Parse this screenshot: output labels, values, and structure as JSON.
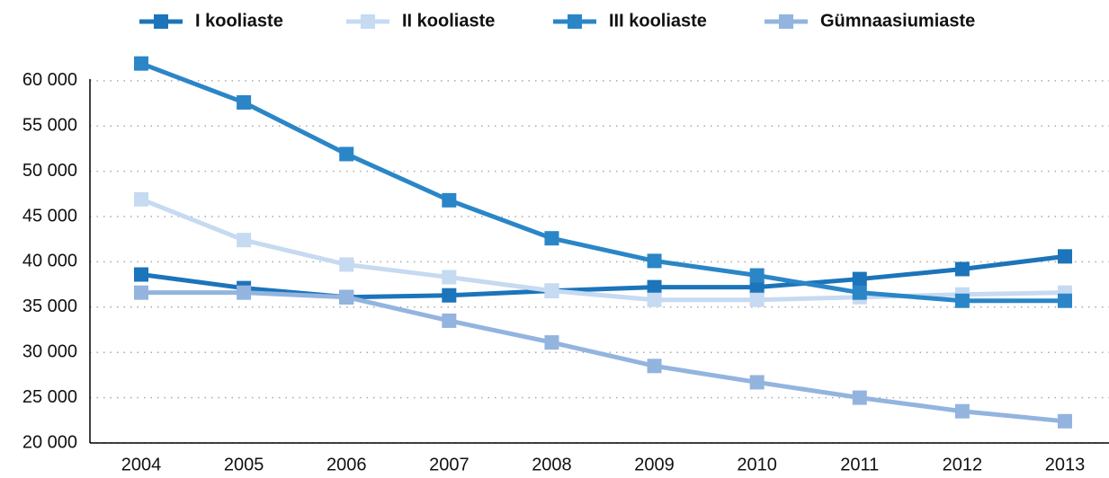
{
  "chart_data": {
    "type": "line",
    "categories": [
      "2004",
      "2005",
      "2006",
      "2007",
      "2008",
      "2009",
      "2010",
      "2011",
      "2012",
      "2013"
    ],
    "series": [
      {
        "name": "I kooliaste",
        "color": "#1c74ba",
        "values": [
          38600,
          37100,
          36100,
          36300,
          36800,
          37200,
          37200,
          38100,
          39200,
          40600
        ]
      },
      {
        "name": "II kooliaste",
        "color": "#c6daf1",
        "values": [
          46900,
          42400,
          39700,
          38300,
          36800,
          35800,
          35800,
          36100,
          36400,
          36600
        ]
      },
      {
        "name": "III kooliaste",
        "color": "#2a86c7",
        "values": [
          61900,
          57600,
          51900,
          46800,
          42600,
          40100,
          38500,
          36600,
          35700,
          35700
        ]
      },
      {
        "name": "Gümnaasiumiaste",
        "color": "#93b4de",
        "values": [
          36600,
          36600,
          36100,
          33500,
          31100,
          28500,
          26700,
          25000,
          23500,
          22400
        ]
      }
    ],
    "ylim": [
      20000,
      64000
    ],
    "yticks": [
      {
        "value": 20000,
        "label": "20 000"
      },
      {
        "value": 25000,
        "label": "25 000"
      },
      {
        "value": 30000,
        "label": "30 000"
      },
      {
        "value": 35000,
        "label": "35 000"
      },
      {
        "value": 40000,
        "label": "40 000"
      },
      {
        "value": 45000,
        "label": "45 000"
      },
      {
        "value": 50000,
        "label": "50 000"
      },
      {
        "value": 55000,
        "label": "55 000"
      },
      {
        "value": 60000,
        "label": "60 000"
      }
    ],
    "grid": true,
    "legend": "top"
  }
}
